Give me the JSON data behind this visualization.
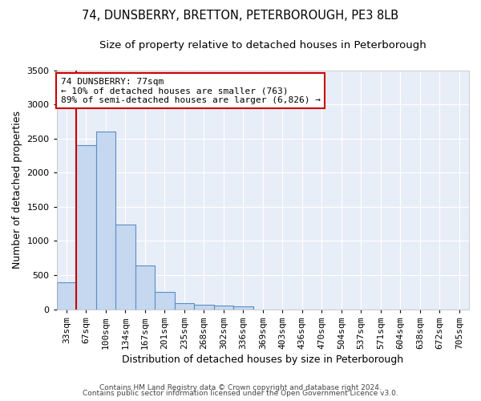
{
  "title": "74, DUNSBERRY, BRETTON, PETERBOROUGH, PE3 8LB",
  "subtitle": "Size of property relative to detached houses in Peterborough",
  "xlabel": "Distribution of detached houses by size in Peterborough",
  "ylabel": "Number of detached properties",
  "footer_line1": "Contains HM Land Registry data © Crown copyright and database right 2024.",
  "footer_line2": "Contains public sector information licensed under the Open Government Licence v3.0.",
  "property_label": "74 DUNSBERRY: 77sqm",
  "annotation_line1": "← 10% of detached houses are smaller (763)",
  "annotation_line2": "89% of semi-detached houses are larger (6,826) →",
  "bar_categories": [
    "33sqm",
    "67sqm",
    "100sqm",
    "134sqm",
    "167sqm",
    "201sqm",
    "235sqm",
    "268sqm",
    "302sqm",
    "336sqm",
    "369sqm",
    "403sqm",
    "436sqm",
    "470sqm",
    "504sqm",
    "537sqm",
    "571sqm",
    "604sqm",
    "638sqm",
    "672sqm",
    "705sqm"
  ],
  "bar_values": [
    390,
    2410,
    2600,
    1240,
    640,
    255,
    90,
    60,
    55,
    45,
    0,
    0,
    0,
    0,
    0,
    0,
    0,
    0,
    0,
    0,
    0
  ],
  "bar_color": "#c5d8f0",
  "bar_edge_color": "#5b8ec4",
  "vline_color": "#cc0000",
  "vline_x_index": 1,
  "ylim": [
    0,
    3500
  ],
  "yticks": [
    0,
    500,
    1000,
    1500,
    2000,
    2500,
    3000,
    3500
  ],
  "bg_color": "#e8eef8",
  "grid_color": "#ffffff",
  "annotation_box_color": "#cc0000",
  "title_fontsize": 10.5,
  "subtitle_fontsize": 9.5,
  "ylabel_fontsize": 9,
  "xlabel_fontsize": 9,
  "tick_fontsize": 8,
  "footer_fontsize": 6.5
}
